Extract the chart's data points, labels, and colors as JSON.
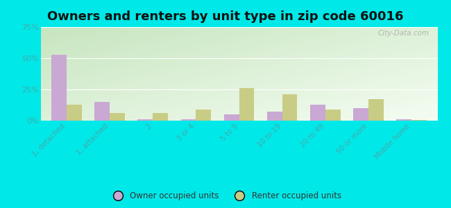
{
  "title": "Owners and renters by unit type in zip code 60016",
  "categories": [
    "1, detached",
    "1, attached",
    "2",
    "3 or 4",
    "5 to 9",
    "10 to 19",
    "20 to 49",
    "50 or more",
    "Mobile home"
  ],
  "owner_values": [
    53,
    15,
    1,
    1,
    5,
    7,
    13,
    10,
    1
  ],
  "renter_values": [
    13,
    6,
    6,
    9,
    26,
    21,
    9,
    17,
    0.5
  ],
  "owner_color": "#c9a8d4",
  "renter_color": "#c8cc84",
  "ylim": [
    0,
    75
  ],
  "yticks": [
    0,
    25,
    50,
    75
  ],
  "ytick_labels": [
    "0%",
    "25%",
    "50%",
    "75%"
  ],
  "background_outer": "#00e8e8",
  "background_plot_topleft": "#b8ddb0",
  "background_plot_bottomright": "#f5faf0",
  "title_fontsize": 13,
  "legend_owner": "Owner occupied units",
  "legend_renter": "Renter occupied units",
  "bar_width": 0.35,
  "watermark": "City-Data.com",
  "tick_color": "#44aaaa",
  "grid_color": "#ddeecc"
}
